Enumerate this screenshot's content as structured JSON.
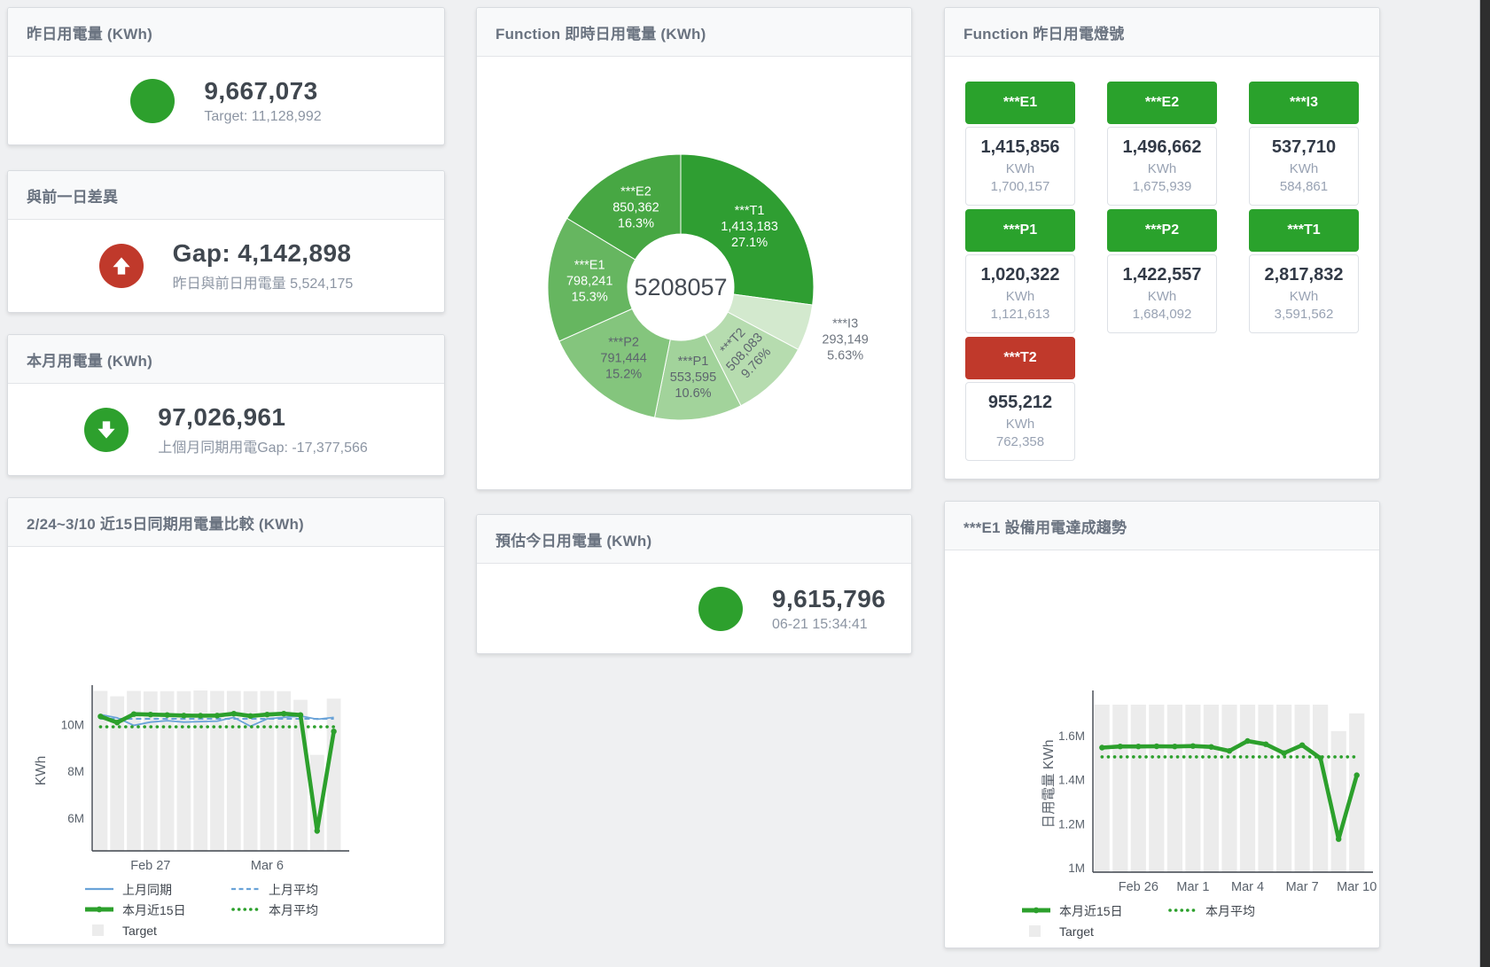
{
  "colors": {
    "green": "#2da02d",
    "red": "#c0392b",
    "blue_line": "#6aa3d8",
    "target_bar": "#ececec",
    "title_text": "#6a7380",
    "value_text": "#40474f",
    "sub_text": "#8c95a3"
  },
  "panels": {
    "yesterday": {
      "title": "昨日用電量 (KWh)",
      "value": "9,667,073",
      "subtext": "Target: 11,128,992"
    },
    "prev_day_gap": {
      "title": "與前一日差異",
      "value": "Gap: 4,142,898",
      "subtext": "昨日與前日用電量 5,524,175"
    },
    "month": {
      "title": "本月用電量 (KWh)",
      "value": "97,026,961",
      "subtext": "上個月同期用電Gap: -17,377,566"
    },
    "today_estimate": {
      "title": "預估今日用電量 (KWh)",
      "value": "9,615,796",
      "subtext": "06-21 15:34:41"
    },
    "realtime_donut": {
      "title": "Function 即時日用電量 (KWh)"
    },
    "status_tiles": {
      "title": "Function 昨日用電燈號",
      "tiles": [
        {
          "label": "***E1",
          "value": "1,415,856",
          "unit": "KWh",
          "prev": "1,700,157",
          "status": "green"
        },
        {
          "label": "***E2",
          "value": "1,496,662",
          "unit": "KWh",
          "prev": "1,675,939",
          "status": "green"
        },
        {
          "label": "***I3",
          "value": "537,710",
          "unit": "KWh",
          "prev": "584,861",
          "status": "green"
        },
        {
          "label": "***P1",
          "value": "1,020,322",
          "unit": "KWh",
          "prev": "1,121,613",
          "status": "green"
        },
        {
          "label": "***P2",
          "value": "1,422,557",
          "unit": "KWh",
          "prev": "1,684,092",
          "status": "green"
        },
        {
          "label": "***T1",
          "value": "2,817,832",
          "unit": "KWh",
          "prev": "3,591,562",
          "status": "green"
        },
        {
          "label": "***T2",
          "value": "955,212",
          "unit": "KWh",
          "prev": "762,358",
          "status": "red"
        }
      ]
    },
    "compare15": {
      "title": "2/24~3/10 近15日同期用電量比較 (KWh)"
    },
    "e1_trend": {
      "title": "***E1 設備用電達成趨勢"
    }
  },
  "chart_data": [
    {
      "id": "donut",
      "type": "pie",
      "title": "Function 即時日用電量 (KWh)",
      "center_label": "5208057",
      "slices": [
        {
          "name": "***T1",
          "value": 1413183,
          "value_label": "1,413,183",
          "pct": "27.1%",
          "color": "#2f9e32",
          "label": "inside",
          "label_color": "#ffffff"
        },
        {
          "name": "***I3",
          "value": 293149,
          "value_label": "293,149",
          "pct": "5.63%",
          "color": "#d3e9ce",
          "label": "outside",
          "label_color": "#6f7680"
        },
        {
          "name": "***T2",
          "value": 508083,
          "value_label": "508,083",
          "pct": "9.76%",
          "color": "#b6dcaf",
          "label": "inside",
          "label_color": "#5d646e",
          "rotate": -47
        },
        {
          "name": "***P1",
          "value": 553595,
          "value_label": "553,595",
          "pct": "10.6%",
          "color": "#a2d39b",
          "label": "inside",
          "label_color": "#5d646e"
        },
        {
          "name": "***P2",
          "value": 791444,
          "value_label": "791,444",
          "pct": "15.2%",
          "color": "#84c57d",
          "label": "inside",
          "label_color": "#5d646e"
        },
        {
          "name": "***E1",
          "value": 798241,
          "value_label": "798,241",
          "pct": "15.3%",
          "color": "#66b660",
          "label": "inside",
          "label_color": "#ffffff"
        },
        {
          "name": "***E2",
          "value": 850362,
          "value_label": "850,362",
          "pct": "16.3%",
          "color": "#47a743",
          "label": "inside",
          "label_color": "#ffffff"
        }
      ]
    },
    {
      "id": "compare15",
      "type": "line",
      "title": "2/24~3/10 近15日同期用電量比較 (KWh)",
      "unit": "M KWh",
      "categories": [
        "2/24",
        "2/25",
        "2/26",
        "2/27",
        "2/28",
        "3/1",
        "3/2",
        "3/3",
        "3/4",
        "3/5",
        "3/6",
        "3/7",
        "3/8",
        "3/9",
        "3/10"
      ],
      "x_ticks": [
        {
          "index": 3,
          "label": "Feb 27"
        },
        {
          "index": 10,
          "label": "Mar 6"
        }
      ],
      "ylabel": "KWh",
      "ylim": [
        4.6,
        11.45
      ],
      "y_ticks": [
        {
          "value": 6,
          "label": "6M"
        },
        {
          "value": 8,
          "label": "8M"
        },
        {
          "value": 10,
          "label": "10M"
        }
      ],
      "target_bars": {
        "name": "Target",
        "values": [
          11.43,
          11.2,
          11.43,
          11.41,
          11.42,
          11.42,
          11.45,
          11.43,
          11.43,
          11.42,
          11.43,
          11.42,
          11.05,
          8.7,
          11.1
        ]
      },
      "series": [
        {
          "name": "上月同期",
          "style": "thin",
          "color": "#6aa3d8",
          "values": [
            10.42,
            10.28,
            9.96,
            10.1,
            10.16,
            10.1,
            10.12,
            10.14,
            10.3,
            9.92,
            10.24,
            10.3,
            10.36,
            10.22,
            10.3
          ]
        },
        {
          "name": "上月平均",
          "style": "dashed",
          "color": "#6aa3d8",
          "values": 10.24
        },
        {
          "name": "本月近15日",
          "style": "thick",
          "color": "#2ca02c",
          "values": [
            10.34,
            10.08,
            10.44,
            10.42,
            10.4,
            10.38,
            10.37,
            10.38,
            10.46,
            10.36,
            10.42,
            10.46,
            10.4,
            5.45,
            9.7
          ]
        },
        {
          "name": "本月平均",
          "style": "dotted",
          "color": "#2ca02c",
          "values": 9.9
        }
      ]
    },
    {
      "id": "e1_trend",
      "type": "line",
      "title": "***E1 設備用電達成趨勢",
      "unit": "M KWh",
      "categories": [
        "2/24",
        "2/25",
        "2/26",
        "2/27",
        "2/28",
        "3/1",
        "3/2",
        "3/3",
        "3/4",
        "3/5",
        "3/6",
        "3/7",
        "3/8",
        "3/9",
        "3/10"
      ],
      "x_ticks": [
        {
          "index": 2,
          "label": "Feb 26"
        },
        {
          "index": 5,
          "label": "Mar 1"
        },
        {
          "index": 8,
          "label": "Mar 4"
        },
        {
          "index": 11,
          "label": "Mar 7"
        },
        {
          "index": 14,
          "label": "Mar 10"
        }
      ],
      "ylabel": "日用電量 KWh",
      "ylim": [
        0.98,
        1.78
      ],
      "y_ticks": [
        {
          "value": 1,
          "label": "1M"
        },
        {
          "value": 1.2,
          "label": "1.2M"
        },
        {
          "value": 1.4,
          "label": "1.4M"
        },
        {
          "value": 1.6,
          "label": "1.6M"
        }
      ],
      "target_bars": {
        "name": "Target",
        "values": [
          1.74,
          1.74,
          1.74,
          1.74,
          1.74,
          1.74,
          1.74,
          1.74,
          1.74,
          1.74,
          1.74,
          1.74,
          1.74,
          1.62,
          1.7
        ]
      },
      "series": [
        {
          "name": "本月近15日",
          "style": "thick",
          "color": "#2ca02c",
          "values": [
            1.545,
            1.55,
            1.55,
            1.551,
            1.55,
            1.552,
            1.548,
            1.53,
            1.575,
            1.56,
            1.52,
            1.556,
            1.497,
            1.13,
            1.42
          ]
        },
        {
          "name": "本月平均",
          "style": "dotted",
          "color": "#2ca02c",
          "values": 1.503
        }
      ]
    }
  ]
}
